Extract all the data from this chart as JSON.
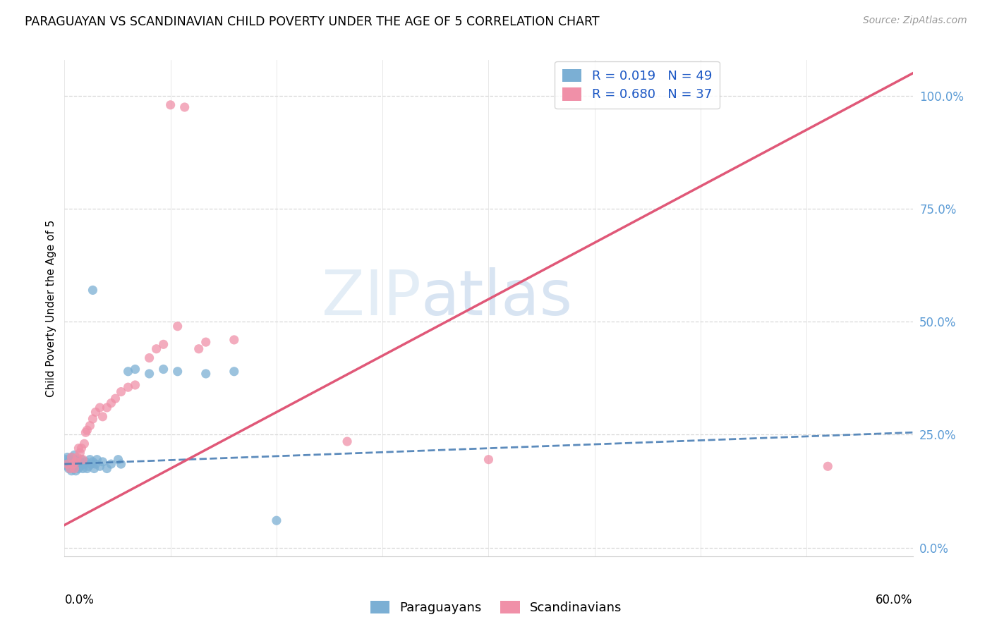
{
  "title": "PARAGUAYAN VS SCANDINAVIAN CHILD POVERTY UNDER THE AGE OF 5 CORRELATION CHART",
  "source": "Source: ZipAtlas.com",
  "ylabel": "Child Poverty Under the Age of 5",
  "right_yticks": [
    0.0,
    0.25,
    0.5,
    0.75,
    1.0
  ],
  "right_yticklabels": [
    "0.0%",
    "25.0%",
    "50.0%",
    "75.0%",
    "100.0%"
  ],
  "xlim": [
    0.0,
    0.6
  ],
  "ylim": [
    -0.02,
    1.08
  ],
  "blue_color": "#7bafd4",
  "pink_color": "#f090a8",
  "blue_line_color": "#4a7fb5",
  "pink_line_color": "#e05878",
  "grid_color": "#d8d8d8",
  "watermark_color_zip": "#c8dff0",
  "watermark_color_atlas": "#c8dff0",
  "background_color": "#ffffff",
  "paraguayan_x": [
    0.001,
    0.001,
    0.002,
    0.002,
    0.003,
    0.003,
    0.004,
    0.004,
    0.005,
    0.005,
    0.006,
    0.006,
    0.007,
    0.007,
    0.008,
    0.008,
    0.009,
    0.009,
    0.01,
    0.01,
    0.011,
    0.011,
    0.012,
    0.013,
    0.014,
    0.015,
    0.016,
    0.017,
    0.018,
    0.019,
    0.02,
    0.021,
    0.022,
    0.023,
    0.025,
    0.027,
    0.03,
    0.033,
    0.038,
    0.04,
    0.045,
    0.05,
    0.06,
    0.07,
    0.08,
    0.1,
    0.12,
    0.02,
    0.15
  ],
  "paraguayan_y": [
    0.195,
    0.185,
    0.2,
    0.18,
    0.19,
    0.175,
    0.195,
    0.185,
    0.2,
    0.17,
    0.185,
    0.195,
    0.205,
    0.18,
    0.195,
    0.17,
    0.185,
    0.195,
    0.185,
    0.175,
    0.19,
    0.18,
    0.195,
    0.175,
    0.185,
    0.19,
    0.175,
    0.18,
    0.195,
    0.185,
    0.19,
    0.175,
    0.185,
    0.195,
    0.18,
    0.19,
    0.175,
    0.185,
    0.195,
    0.185,
    0.39,
    0.395,
    0.385,
    0.395,
    0.39,
    0.385,
    0.39,
    0.57,
    0.06
  ],
  "scandinavian_x": [
    0.002,
    0.004,
    0.005,
    0.006,
    0.007,
    0.008,
    0.009,
    0.01,
    0.011,
    0.012,
    0.013,
    0.014,
    0.015,
    0.016,
    0.018,
    0.02,
    0.022,
    0.025,
    0.027,
    0.03,
    0.033,
    0.036,
    0.04,
    0.045,
    0.05,
    0.06,
    0.065,
    0.07,
    0.08,
    0.095,
    0.1,
    0.12,
    0.2,
    0.3,
    0.54,
    0.075,
    0.085
  ],
  "scandinavian_y": [
    0.185,
    0.175,
    0.2,
    0.185,
    0.175,
    0.19,
    0.2,
    0.22,
    0.21,
    0.22,
    0.195,
    0.23,
    0.255,
    0.26,
    0.27,
    0.285,
    0.3,
    0.31,
    0.29,
    0.31,
    0.32,
    0.33,
    0.345,
    0.355,
    0.36,
    0.42,
    0.44,
    0.45,
    0.49,
    0.44,
    0.455,
    0.46,
    0.235,
    0.195,
    0.18,
    0.98,
    0.975
  ],
  "blue_trend_x": [
    0.0,
    0.6
  ],
  "blue_trend_y": [
    0.185,
    0.255
  ],
  "pink_trend_x": [
    0.0,
    0.6
  ],
  "pink_trend_y": [
    0.05,
    1.05
  ]
}
